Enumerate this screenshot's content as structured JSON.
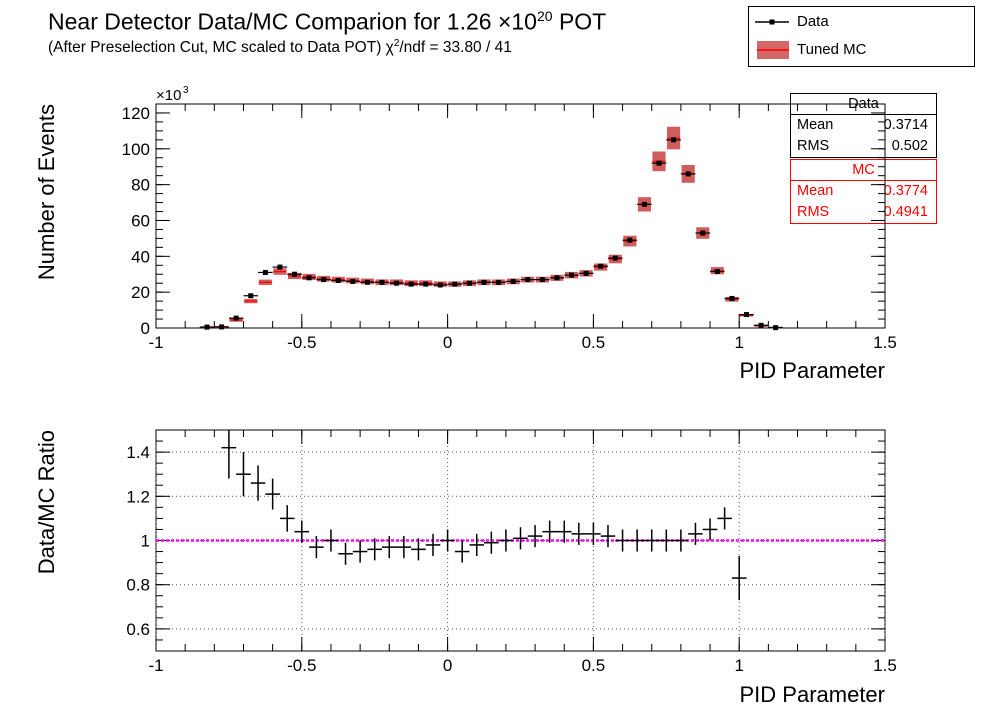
{
  "title": {
    "main": "Near Detector Data/MC Comparion for 1.26 ×10",
    "main_exp": "20",
    "main_suffix": " POT",
    "subtitle_prefix": "(After Preselection Cut, MC scaled to Data POT)    χ",
    "subtitle_exp": "2",
    "subtitle_suffix": "/ndf = 33.80 / 41"
  },
  "legend": {
    "data_label": "Data",
    "mc_label": "Tuned MC"
  },
  "stats": {
    "data": {
      "title": "Data",
      "mean_label": "Mean",
      "mean_value": "0.3714",
      "rms_label": "RMS",
      "rms_value": "0.502"
    },
    "mc": {
      "title": "MC",
      "mean_label": "Mean",
      "mean_value": "0.3774",
      "rms_label": "RMS",
      "rms_value": "0.4941"
    }
  },
  "colors": {
    "data": "#000000",
    "mc": "#cc2222",
    "mc_band": "#c84040",
    "ratio_line": "#ff00ff",
    "stats_mc": "#ff0000"
  },
  "chart_data": [
    {
      "type": "scatter",
      "xlabel": "PID Parameter",
      "ylabel": "Number of Events",
      "y_multiplier": "×10",
      "y_multiplier_exp": "3",
      "xlim": [
        -1,
        1.5
      ],
      "ylim": [
        0,
        125
      ],
      "x_ticks": [
        "-1",
        "-0.5",
        "0",
        "0.5",
        "1",
        "1.5"
      ],
      "y_ticks": [
        "0",
        "20",
        "40",
        "60",
        "80",
        "100",
        "120"
      ],
      "grid": false,
      "legend_position": "top-right",
      "bin_width": 0.05,
      "series": [
        {
          "name": "Data",
          "x": [
            -0.825,
            -0.775,
            -0.725,
            -0.675,
            -0.625,
            -0.575,
            -0.525,
            -0.475,
            -0.425,
            -0.375,
            -0.325,
            -0.275,
            -0.225,
            -0.175,
            -0.125,
            -0.075,
            -0.025,
            0.025,
            0.075,
            0.125,
            0.175,
            0.225,
            0.275,
            0.325,
            0.375,
            0.425,
            0.475,
            0.525,
            0.575,
            0.625,
            0.675,
            0.725,
            0.775,
            0.825,
            0.875,
            0.925,
            0.975,
            1.025,
            1.075,
            1.125,
            1.175,
            1.225
          ],
          "y": [
            0.5,
            0.6,
            5.5,
            18,
            31,
            34,
            30,
            28,
            27,
            26.5,
            26,
            25.5,
            25.5,
            25,
            24.5,
            24.5,
            24,
            24.5,
            25,
            25.5,
            25.5,
            26,
            27,
            27,
            28,
            29.5,
            30.5,
            34.5,
            39,
            49,
            69,
            92,
            105,
            86,
            53,
            31.5,
            16.5,
            7.5,
            1.5,
            0.2,
            0,
            0
          ]
        },
        {
          "name": "Tuned MC",
          "x": [
            -0.825,
            -0.775,
            -0.725,
            -0.675,
            -0.625,
            -0.575,
            -0.525,
            -0.475,
            -0.425,
            -0.375,
            -0.325,
            -0.275,
            -0.225,
            -0.175,
            -0.125,
            -0.075,
            -0.025,
            0.025,
            0.075,
            0.125,
            0.175,
            0.225,
            0.275,
            0.325,
            0.375,
            0.425,
            0.475,
            0.525,
            0.575,
            0.625,
            0.675,
            0.725,
            0.775,
            0.825,
            0.875,
            0.925,
            0.975,
            1.025,
            1.075,
            1.125,
            1.175,
            1.225
          ],
          "y": [
            0.4,
            0.5,
            4.5,
            15,
            25.5,
            31.5,
            29,
            28.5,
            27.5,
            27,
            26.5,
            26,
            25.5,
            25.5,
            25,
            25,
            24.5,
            24.5,
            25,
            25.5,
            25.5,
            26,
            27,
            27,
            28,
            29.5,
            30.5,
            34,
            38.5,
            48.5,
            69,
            93,
            106,
            86,
            53,
            32,
            16,
            7,
            1.3,
            0.2,
            0,
            0
          ],
          "band_halfwidth": [
            0.3,
            0.3,
            1,
            1.2,
            1.5,
            1.8,
            1.7,
            1.7,
            1.6,
            1.6,
            1.6,
            1.6,
            1.6,
            1.6,
            1.6,
            1.6,
            1.5,
            1.5,
            1.6,
            1.6,
            1.6,
            1.6,
            1.6,
            1.6,
            1.7,
            1.8,
            1.8,
            2,
            2.4,
            3,
            4,
            5.5,
            6.3,
            5,
            3.2,
            2,
            1.3,
            0.6,
            0.3,
            0.2,
            0,
            0
          ]
        }
      ]
    },
    {
      "type": "scatter",
      "xlabel": "PID Parameter",
      "ylabel": "Data/MC Ratio",
      "xlim": [
        -1,
        1.5
      ],
      "ylim": [
        0.5,
        1.5
      ],
      "x_ticks": [
        "-1",
        "-0.5",
        "0",
        "0.5",
        "1",
        "1.5"
      ],
      "y_ticks": [
        "0.6",
        "0.8",
        "1",
        "1.2",
        "1.4"
      ],
      "grid": true,
      "reference_line": 1,
      "bin_width": 0.05,
      "series": [
        {
          "name": "",
          "x": [
            -0.75,
            -0.7,
            -0.65,
            -0.6,
            -0.55,
            -0.5,
            -0.45,
            -0.4,
            -0.35,
            -0.3,
            -0.25,
            -0.2,
            -0.15,
            -0.1,
            -0.05,
            0,
            0.05,
            0.1,
            0.15,
            0.2,
            0.25,
            0.3,
            0.35,
            0.4,
            0.45,
            0.5,
            0.55,
            0.6,
            0.65,
            0.7,
            0.75,
            0.8,
            0.85,
            0.9,
            0.95,
            1,
            1.05,
            1.1,
            1.15
          ],
          "y": [
            1.42,
            1.3,
            1.26,
            1.21,
            1.1,
            1.04,
            0.97,
            1.0,
            0.94,
            0.95,
            0.96,
            0.97,
            0.97,
            0.96,
            0.98,
            1.0,
            0.95,
            0.98,
            0.99,
            1.0,
            1.01,
            1.02,
            1.04,
            1.04,
            1.03,
            1.03,
            1.02,
            1.0,
            1.0,
            1.0,
            1.0,
            1.0,
            1.03,
            1.05,
            1.1,
            0.83,
            null,
            null,
            null
          ],
          "y_err": [
            0.14,
            0.1,
            0.08,
            0.07,
            0.06,
            0.05,
            0.05,
            0.05,
            0.05,
            0.05,
            0.05,
            0.05,
            0.05,
            0.05,
            0.05,
            0.05,
            0.05,
            0.05,
            0.05,
            0.05,
            0.05,
            0.05,
            0.05,
            0.05,
            0.05,
            0.05,
            0.05,
            0.05,
            0.05,
            0.05,
            0.05,
            0.05,
            0.05,
            0.05,
            0.05,
            0.1,
            null,
            null,
            null
          ]
        }
      ]
    }
  ]
}
